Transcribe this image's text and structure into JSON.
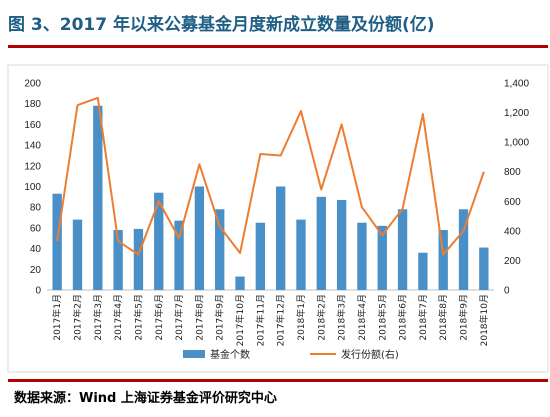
{
  "title": "图 3、2017 年以来公募基金月度新成立数量及份额(亿)",
  "source": "数据来源：Wind 上海证券基金评价研究中心",
  "colors": {
    "bar": "#4a90c8",
    "line": "#ed7d31",
    "rule": "#b00000",
    "title": "#1f5f86"
  },
  "chart_data": {
    "type": "bar",
    "categories": [
      "2017年1月",
      "2017年2月",
      "2017年3月",
      "2017年4月",
      "2017年5月",
      "2017年6月",
      "2017年7月",
      "2017年8月",
      "2017年9月",
      "2017年10月",
      "2017年11月",
      "2017年12月",
      "2018年1月",
      "2018年2月",
      "2018年3月",
      "2018年4月",
      "2018年5月",
      "2018年6月",
      "2018年7月",
      "2018年8月",
      "2018年9月",
      "2018年10月"
    ],
    "series": [
      {
        "name": "基金个数",
        "type": "bar",
        "axis": "left",
        "values": [
          93,
          68,
          178,
          58,
          59,
          94,
          67,
          100,
          78,
          13,
          65,
          100,
          68,
          90,
          87,
          65,
          62,
          78,
          36,
          58,
          78,
          41
        ]
      },
      {
        "name": "发行份额(右)",
        "type": "line",
        "axis": "right",
        "values": [
          330,
          1250,
          1300,
          330,
          240,
          600,
          350,
          850,
          430,
          250,
          920,
          910,
          1210,
          680,
          1120,
          560,
          370,
          550,
          1190,
          240,
          400,
          800
        ]
      }
    ],
    "ylim_left": [
      0,
      200
    ],
    "yticks_left": [
      "0",
      "20",
      "40",
      "60",
      "80",
      "100",
      "120",
      "140",
      "160",
      "180",
      "200"
    ],
    "ylim_right": [
      0,
      1400
    ],
    "yticks_right": [
      "0",
      "200",
      "400",
      "600",
      "800",
      "1,000",
      "1,200",
      "1,400"
    ],
    "legend": "bottom",
    "grid": false
  }
}
